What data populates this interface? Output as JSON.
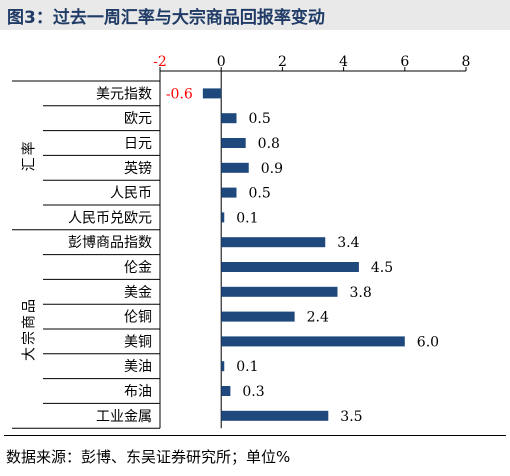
{
  "title": "图3：过去一周汇率与大宗商品回报率变动",
  "source": "数据来源：彭博、东吴证券研究所；单位%",
  "chart_data": {
    "type": "bar",
    "orientation": "horizontal",
    "title": "图3：过去一周汇率与大宗商品回报率变动",
    "xlim": [
      -2,
      8
    ],
    "xticks": [
      "-2",
      "0",
      "2",
      "4",
      "6",
      "8"
    ],
    "grid": false,
    "bar_color": "#1f497d",
    "negative_label_color": "#ff0000",
    "groups": [
      {
        "name": "汇率",
        "items": [
          {
            "label": "美元指数",
            "value": -0.6,
            "value_label": "-0.6"
          },
          {
            "label": "欧元",
            "value": 0.5,
            "value_label": "0.5"
          },
          {
            "label": "日元",
            "value": 0.8,
            "value_label": "0.8"
          },
          {
            "label": "英镑",
            "value": 0.9,
            "value_label": "0.9"
          },
          {
            "label": "人民币",
            "value": 0.5,
            "value_label": "0.5"
          },
          {
            "label": "人民币兑欧元",
            "value": 0.1,
            "value_label": "0.1"
          }
        ]
      },
      {
        "name": "大宗商品",
        "items": [
          {
            "label": "彭博商品指数",
            "value": 3.4,
            "value_label": "3.4"
          },
          {
            "label": "伦金",
            "value": 4.5,
            "value_label": "4.5"
          },
          {
            "label": "美金",
            "value": 3.8,
            "value_label": "3.8"
          },
          {
            "label": "伦铜",
            "value": 2.4,
            "value_label": "2.4"
          },
          {
            "label": "美铜",
            "value": 6.0,
            "value_label": "6.0"
          },
          {
            "label": "美油",
            "value": 0.1,
            "value_label": "0.1"
          },
          {
            "label": "布油",
            "value": 0.3,
            "value_label": "0.3"
          },
          {
            "label": "工业金属",
            "value": 3.5,
            "value_label": "3.5"
          }
        ]
      }
    ]
  }
}
